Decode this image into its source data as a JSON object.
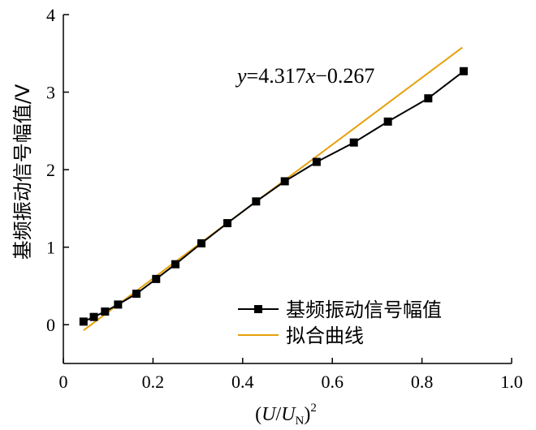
{
  "chart_data": {
    "type": "line",
    "xlabel": {
      "prefix": "(",
      "U": "U",
      "slash": "/",
      "U2": "U",
      "sub": "N",
      "suffix": ")",
      "sup": "2"
    },
    "ylabel": "基频振动信号幅值/V",
    "xlim": [
      0,
      1.0
    ],
    "ylim": [
      -0.5,
      4
    ],
    "x_ticks": [
      0,
      0.2,
      0.4,
      0.6,
      0.8,
      1.0
    ],
    "x_tick_labels": [
      "0",
      "0.2",
      "0.4",
      "0.6",
      "0.8",
      "1.0"
    ],
    "y_ticks": [
      0,
      1,
      2,
      3,
      4
    ],
    "y_tick_labels": [
      "0",
      "1",
      "2",
      "3",
      "4"
    ],
    "grid": false,
    "legend_position": "bottom-right",
    "series": [
      {
        "name": "基频振动信号幅值",
        "style": "line-square-markers",
        "color": "#000000",
        "x": [
          0.045,
          0.068,
          0.093,
          0.122,
          0.163,
          0.207,
          0.25,
          0.308,
          0.366,
          0.43,
          0.494,
          0.565,
          0.648,
          0.724,
          0.814,
          0.893
        ],
        "y": [
          0.04,
          0.1,
          0.17,
          0.26,
          0.4,
          0.59,
          0.78,
          1.05,
          1.31,
          1.59,
          1.85,
          2.1,
          2.35,
          2.62,
          2.92,
          3.27
        ]
      },
      {
        "name": "拟合曲线",
        "style": "line",
        "color": "#E6A00B",
        "x": [
          0.045,
          0.89
        ],
        "y": [
          -0.073,
          3.575
        ]
      }
    ],
    "annotation": {
      "y": "y",
      "eq": "=4.317",
      "x": "x",
      "rest": "−0.267"
    }
  }
}
